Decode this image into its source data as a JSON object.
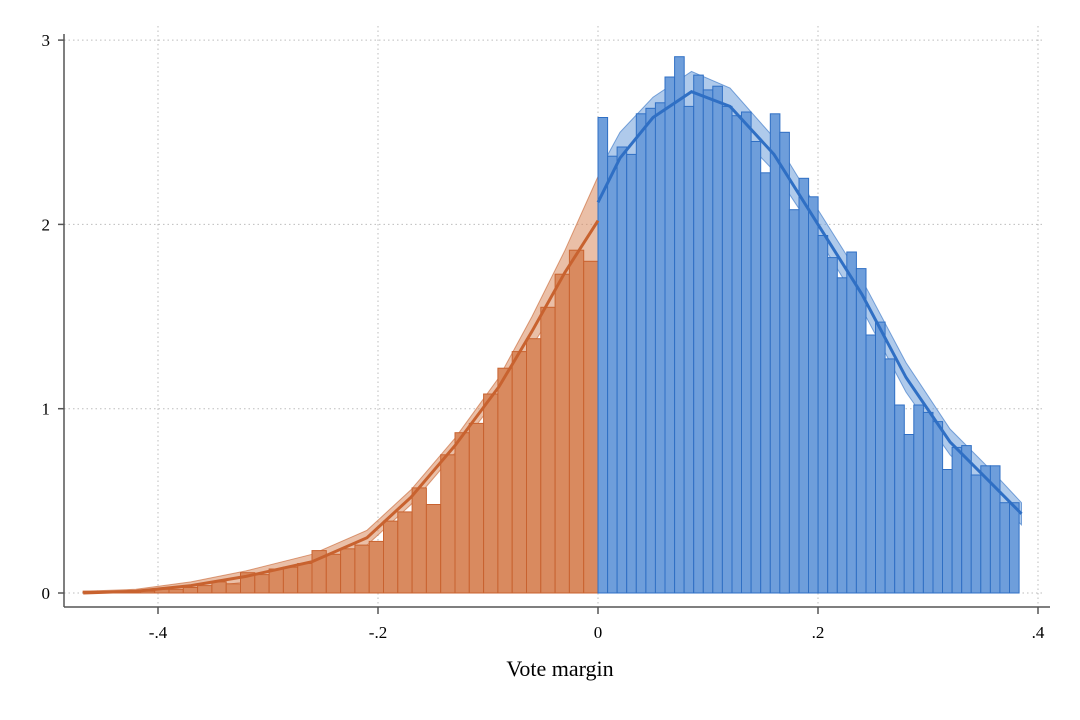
{
  "chart_data": {
    "type": "bar",
    "xlabel": "Vote margin",
    "ylabel": "",
    "xlim": [
      -0.48,
      0.4
    ],
    "ylim": [
      0,
      3
    ],
    "grid": true,
    "x_ticks": [
      {
        "value": -0.4,
        "label": "-.4"
      },
      {
        "value": -0.2,
        "label": "-.2"
      },
      {
        "value": 0,
        "label": "0"
      },
      {
        "value": 0.2,
        "label": ".2"
      },
      {
        "value": 0.4,
        "label": ".4"
      }
    ],
    "y_ticks": [
      {
        "value": 0,
        "label": "0"
      },
      {
        "value": 1,
        "label": "1"
      },
      {
        "value": 2,
        "label": "2"
      },
      {
        "value": 3,
        "label": "3"
      }
    ],
    "bin_width": 0.013,
    "colors": {
      "left": "#c8622f",
      "left_fill": "#d98a5f",
      "right": "#2f6fc4",
      "right_fill": "#6e9edb",
      "grid": "#bdbdbd",
      "axis": "#555555"
    },
    "series": [
      {
        "side": "left",
        "bin_starts": [
          -0.468,
          -0.455,
          -0.442,
          -0.429,
          -0.416,
          -0.403,
          -0.39,
          -0.377,
          -0.364,
          -0.351,
          -0.338,
          -0.325,
          -0.312,
          -0.299,
          -0.286,
          -0.273,
          -0.26,
          -0.247,
          -0.234,
          -0.221,
          -0.208,
          -0.195,
          -0.182,
          -0.169,
          -0.156,
          -0.143,
          -0.13,
          -0.117,
          -0.104,
          -0.091,
          -0.078,
          -0.065,
          -0.052,
          -0.039,
          -0.026,
          -0.013
        ],
        "heights": [
          0.01,
          0.01,
          0.01,
          0.01,
          0.01,
          0.02,
          0.02,
          0.03,
          0.04,
          0.06,
          0.05,
          0.11,
          0.1,
          0.13,
          0.14,
          0.16,
          0.23,
          0.21,
          0.24,
          0.26,
          0.28,
          0.39,
          0.44,
          0.57,
          0.48,
          0.75,
          0.87,
          0.92,
          1.08,
          1.22,
          1.31,
          1.38,
          1.55,
          1.73,
          1.86,
          1.8
        ],
        "fit": {
          "x": [
            -0.468,
            -0.42,
            -0.37,
            -0.32,
            -0.26,
            -0.21,
            -0.17,
            -0.13,
            -0.09,
            -0.06,
            -0.03,
            0.0
          ],
          "y": [
            0.0,
            0.01,
            0.04,
            0.09,
            0.17,
            0.3,
            0.52,
            0.8,
            1.12,
            1.42,
            1.74,
            2.02
          ],
          "lower": [
            0.0,
            0.0,
            0.02,
            0.06,
            0.13,
            0.26,
            0.48,
            0.76,
            1.07,
            1.34,
            1.62,
            1.78
          ],
          "upper": [
            0.01,
            0.02,
            0.06,
            0.12,
            0.21,
            0.34,
            0.56,
            0.84,
            1.17,
            1.5,
            1.86,
            2.26
          ]
        }
      },
      {
        "side": "right",
        "bin_starts": [
          0.0,
          0.0087,
          0.0174,
          0.0261,
          0.0348,
          0.0435,
          0.0522,
          0.0609,
          0.0696,
          0.0783,
          0.087,
          0.0957,
          0.1044,
          0.1131,
          0.1218,
          0.1305,
          0.1392,
          0.1479,
          0.1566,
          0.1653,
          0.174,
          0.1827,
          0.1914,
          0.2001,
          0.2088,
          0.2175,
          0.2262,
          0.2349,
          0.2436,
          0.2523,
          0.261,
          0.2697,
          0.2784,
          0.2871,
          0.2958,
          0.3045,
          0.3132,
          0.3219,
          0.3306,
          0.3393,
          0.348,
          0.3567,
          0.3654,
          0.3741
        ],
        "heights": [
          2.58,
          2.37,
          2.42,
          2.38,
          2.6,
          2.63,
          2.66,
          2.8,
          2.91,
          2.64,
          2.81,
          2.73,
          2.75,
          2.64,
          2.59,
          2.61,
          2.45,
          2.28,
          2.6,
          2.5,
          2.08,
          2.25,
          2.15,
          1.94,
          1.82,
          1.71,
          1.85,
          1.76,
          1.4,
          1.47,
          1.27,
          1.02,
          0.86,
          1.02,
          0.98,
          0.93,
          0.67,
          0.79,
          0.8,
          0.64,
          0.69,
          0.69,
          0.49,
          0.49
        ],
        "fit": {
          "x": [
            0.0,
            0.02,
            0.05,
            0.085,
            0.12,
            0.16,
            0.2,
            0.24,
            0.28,
            0.32,
            0.36,
            0.385
          ],
          "y": [
            2.12,
            2.36,
            2.58,
            2.72,
            2.64,
            2.38,
            2.0,
            1.62,
            1.17,
            0.82,
            0.58,
            0.43
          ],
          "lower": [
            1.96,
            2.22,
            2.47,
            2.61,
            2.54,
            2.29,
            1.93,
            1.54,
            1.09,
            0.75,
            0.51,
            0.37
          ],
          "upper": [
            2.28,
            2.5,
            2.69,
            2.83,
            2.74,
            2.47,
            2.08,
            1.7,
            1.25,
            0.89,
            0.65,
            0.49
          ]
        }
      }
    ]
  }
}
